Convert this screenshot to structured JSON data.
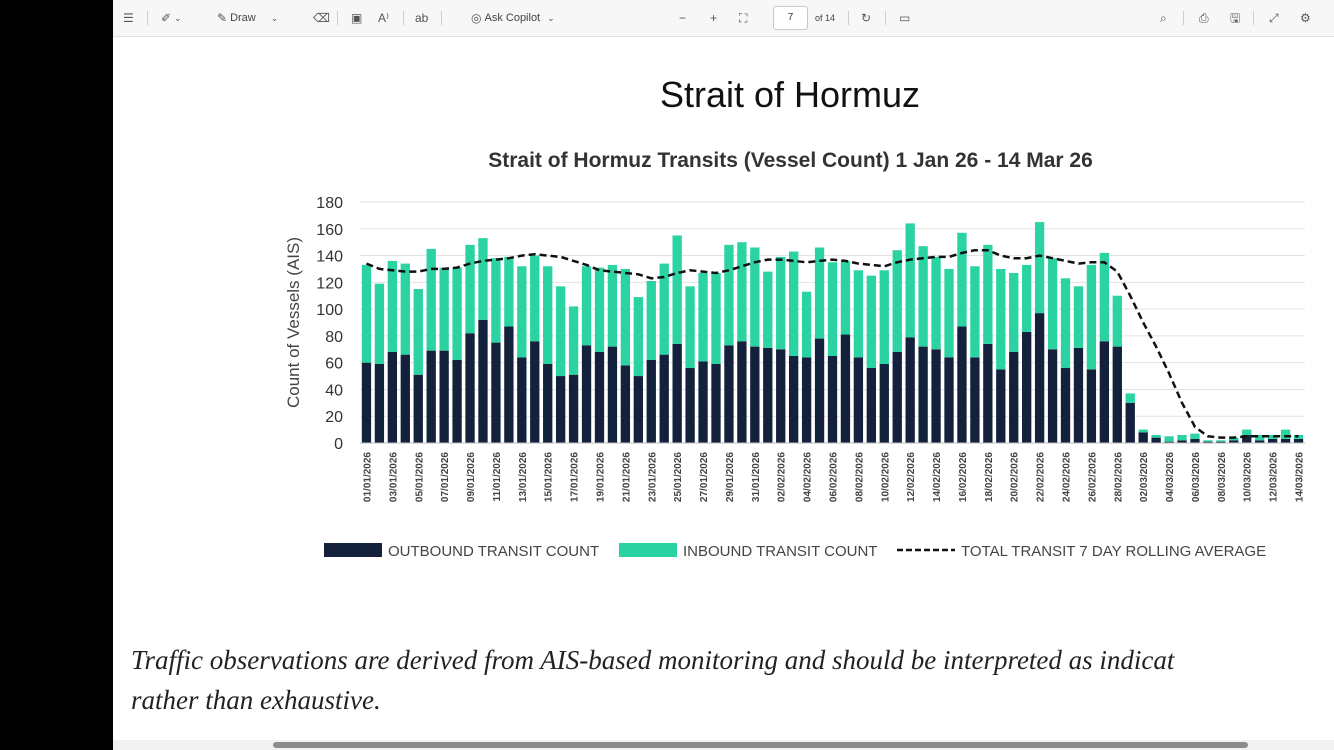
{
  "toolbar": {
    "draw_label": "Draw",
    "ask_copilot_label": "Ask Copilot",
    "page_number": "7",
    "page_total": "of 14"
  },
  "document": {
    "title": "Strait of Hormuz",
    "disclaimer_line1": "Traffic observations are derived from AIS-based monitoring and should be interpreted as indicat",
    "disclaimer_line2": "rather than exhaustive."
  },
  "chart_data": {
    "type": "bar",
    "title": "Strait of Hormuz Transits (Vessel Count) 1 Jan 26 - 14 Mar 26",
    "ylabel": "Count of Vessels (AIS)",
    "xlabel": "",
    "ylim": [
      0,
      180
    ],
    "yticks": [
      0,
      20,
      40,
      60,
      80,
      100,
      120,
      140,
      160,
      180
    ],
    "stacked": true,
    "grid": true,
    "legend_position": "bottom",
    "colors": {
      "outbound": "#14213d",
      "inbound": "#2bd3a2",
      "rolling": "#111111"
    },
    "categories": [
      "01/01/2026",
      "02/01/2026",
      "03/01/2026",
      "04/01/2026",
      "05/01/2026",
      "06/01/2026",
      "07/01/2026",
      "08/01/2026",
      "09/01/2026",
      "10/01/2026",
      "11/01/2026",
      "12/01/2026",
      "13/01/2026",
      "14/01/2026",
      "15/01/2026",
      "16/01/2026",
      "17/01/2026",
      "18/01/2026",
      "19/01/2026",
      "20/01/2026",
      "21/01/2026",
      "22/01/2026",
      "23/01/2026",
      "24/01/2026",
      "25/01/2026",
      "26/01/2026",
      "27/01/2026",
      "28/01/2026",
      "29/01/2026",
      "30/01/2026",
      "31/01/2026",
      "01/02/2026",
      "02/02/2026",
      "03/02/2026",
      "04/02/2026",
      "05/02/2026",
      "06/02/2026",
      "07/02/2026",
      "08/02/2026",
      "09/02/2026",
      "10/02/2026",
      "11/02/2026",
      "12/02/2026",
      "13/02/2026",
      "14/02/2026",
      "15/02/2026",
      "16/02/2026",
      "17/02/2026",
      "18/02/2026",
      "19/02/2026",
      "20/02/2026",
      "21/02/2026",
      "22/02/2026",
      "23/02/2026",
      "24/02/2026",
      "25/02/2026",
      "26/02/2026",
      "27/02/2026",
      "28/02/2026",
      "01/03/2026",
      "02/03/2026",
      "03/03/2026",
      "04/03/2026",
      "05/03/2026",
      "06/03/2026",
      "07/03/2026",
      "08/03/2026",
      "09/03/2026",
      "10/03/2026",
      "11/03/2026",
      "12/03/2026",
      "13/03/2026",
      "14/03/2026"
    ],
    "tick_labels": [
      "01/01/2026",
      "03/01/2026",
      "05/01/2026",
      "07/01/2026",
      "09/01/2026",
      "11/01/2026",
      "13/01/2026",
      "15/01/2026",
      "17/01/2026",
      "19/01/2026",
      "21/01/2026",
      "23/01/2026",
      "25/01/2026",
      "27/01/2026",
      "29/01/2026",
      "31/01/2026",
      "02/02/2026",
      "04/02/2026",
      "06/02/2026",
      "08/02/2026",
      "10/02/2026",
      "12/02/2026",
      "14/02/2026",
      "16/02/2026",
      "18/02/2026",
      "20/02/2026",
      "22/02/2026",
      "24/02/2026",
      "26/02/2026",
      "28/02/2026",
      "02/03/2026",
      "04/03/2026",
      "06/03/2026",
      "08/03/2026",
      "10/03/2026",
      "12/03/2026",
      "14/03/2026"
    ],
    "series": [
      {
        "name": "OUTBOUND TRANSIT COUNT",
        "kind": "bar",
        "values": [
          60,
          59,
          68,
          66,
          51,
          69,
          69,
          62,
          82,
          92,
          75,
          87,
          64,
          76,
          59,
          50,
          51,
          73,
          68,
          72,
          58,
          50,
          62,
          66,
          74,
          56,
          61,
          59,
          73,
          76,
          72,
          71,
          70,
          65,
          64,
          78,
          65,
          81,
          64,
          56,
          59,
          68,
          79,
          72,
          70,
          64,
          87,
          64,
          74,
          55,
          68,
          83,
          97,
          70,
          56,
          71,
          55,
          76,
          72,
          30,
          8,
          4,
          1,
          2,
          3,
          1,
          1,
          2,
          6,
          2,
          3,
          3,
          3
        ]
      },
      {
        "name": "INBOUND TRANSIT COUNT",
        "kind": "bar",
        "values": [
          73,
          60,
          68,
          68,
          64,
          76,
          62,
          69,
          66,
          61,
          63,
          52,
          68,
          64,
          73,
          67,
          51,
          59,
          63,
          61,
          72,
          59,
          59,
          68,
          81,
          61,
          66,
          68,
          75,
          74,
          74,
          57,
          69,
          78,
          49,
          68,
          70,
          55,
          65,
          69,
          70,
          76,
          85,
          75,
          69,
          66,
          70,
          68,
          74,
          75,
          59,
          50,
          68,
          68,
          67,
          46,
          78,
          66,
          38,
          7,
          2,
          2,
          4,
          4,
          4,
          1,
          1,
          2,
          4,
          4,
          3,
          7,
          3
        ]
      },
      {
        "name": "TOTAL TRANSIT 7 DAY ROLLING AVERAGE",
        "kind": "line",
        "values": [
          134,
          130,
          129,
          128,
          128,
          130,
          130,
          131,
          134,
          136,
          137,
          138,
          140,
          141,
          140,
          139,
          136,
          133,
          129,
          128,
          127,
          126,
          123,
          124,
          127,
          129,
          128,
          127,
          129,
          132,
          135,
          137,
          137,
          136,
          135,
          136,
          137,
          136,
          134,
          133,
          132,
          135,
          137,
          138,
          139,
          139,
          142,
          144,
          144,
          140,
          138,
          138,
          140,
          138,
          136,
          134,
          135,
          135,
          128,
          110,
          90,
          72,
          52,
          30,
          12,
          5,
          4,
          4,
          5,
          5,
          5,
          5,
          5
        ]
      }
    ]
  }
}
